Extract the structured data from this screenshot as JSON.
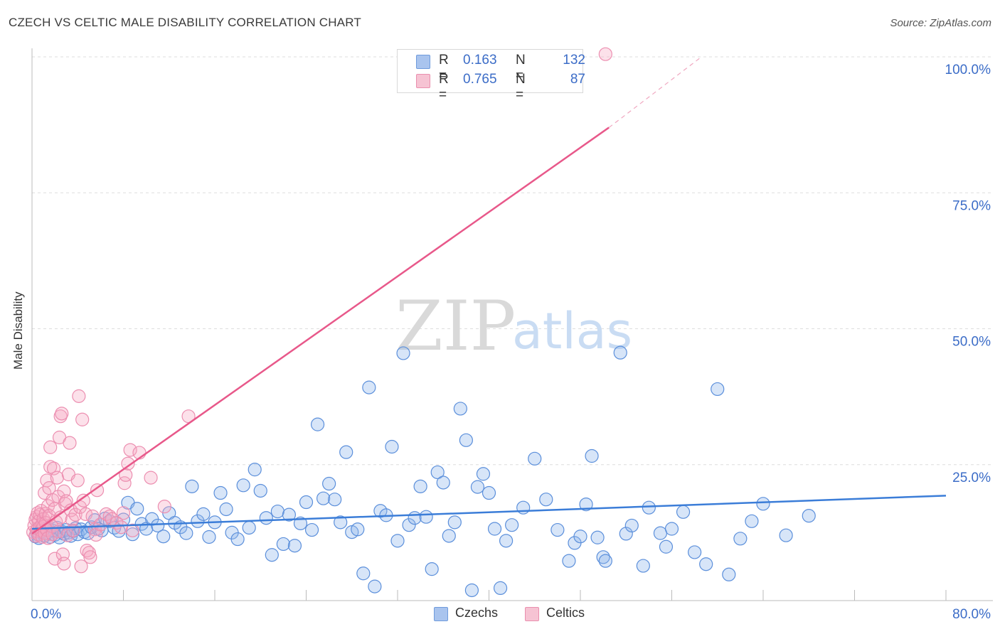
{
  "header": {
    "title": "CZECH VS CELTIC MALE DISABILITY CORRELATION CHART",
    "source": "Source: ZipAtlas.com"
  },
  "watermark": {
    "zip": "ZIP",
    "atlas": "atlas"
  },
  "legend": {
    "rows": [
      {
        "r_label": "R =",
        "r_value": "0.163",
        "n_label": "N =",
        "n_value": "132",
        "color": "#a9c4ee"
      },
      {
        "r_label": "R =",
        "r_value": "0.765",
        "n_label": "N =",
        "n_value": "87",
        "color": "#f6b8cc"
      }
    ]
  },
  "bottom_legend": [
    {
      "label": "Czechs",
      "color": "#a9c4ee"
    },
    {
      "label": "Celtics",
      "color": "#f6b8cc"
    }
  ],
  "chart_data": {
    "type": "scatter",
    "title": "CZECH VS CELTIC MALE DISABILITY CORRELATION CHART",
    "xlabel": "",
    "ylabel": "Male Disability",
    "xlim": [
      0,
      80
    ],
    "ylim": [
      0,
      100
    ],
    "x_tick_labels": [
      "0.0%",
      "80.0%"
    ],
    "y_tick_labels": [
      "25.0%",
      "50.0%",
      "75.0%",
      "100.0%"
    ],
    "y_ticks": [
      25,
      50,
      75,
      100
    ],
    "grid": "horizontal dashed",
    "legend_position": "top-center",
    "colors": {
      "czechs": "#3b7dd8",
      "celtics": "#e8588a",
      "tick_label": "#3b6cc7"
    },
    "series": [
      {
        "name": "Czechs",
        "r": 0.163,
        "n": 132,
        "trend": {
          "x": [
            0,
            80
          ],
          "y": [
            13.2,
            19.3
          ]
        },
        "points": [
          [
            0.3,
            11.8
          ],
          [
            0.5,
            12.2
          ],
          [
            0.6,
            11.5
          ],
          [
            0.8,
            12.6
          ],
          [
            1.0,
            13.1
          ],
          [
            1.1,
            11.9
          ],
          [
            1.3,
            12.4
          ],
          [
            1.4,
            13.2
          ],
          [
            1.6,
            11.7
          ],
          [
            1.8,
            12.9
          ],
          [
            2.0,
            12.1
          ],
          [
            2.2,
            13.4
          ],
          [
            2.4,
            11.6
          ],
          [
            2.6,
            12.7
          ],
          [
            2.8,
            12.3
          ],
          [
            3.0,
            13.0
          ],
          [
            3.2,
            12.5
          ],
          [
            3.4,
            11.9
          ],
          [
            3.6,
            12.8
          ],
          [
            3.8,
            13.3
          ],
          [
            4.0,
            12.2
          ],
          [
            4.3,
            13.1
          ],
          [
            4.6,
            12.6
          ],
          [
            4.9,
            12.4
          ],
          [
            5.2,
            13.5
          ],
          [
            5.5,
            14.8
          ],
          [
            5.8,
            13.2
          ],
          [
            6.1,
            12.9
          ],
          [
            6.4,
            15.1
          ],
          [
            6.8,
            14.6
          ],
          [
            7.2,
            13.4
          ],
          [
            7.6,
            12.8
          ],
          [
            8.0,
            14.9
          ],
          [
            8.4,
            18.0
          ],
          [
            8.8,
            12.2
          ],
          [
            9.2,
            16.9
          ],
          [
            9.6,
            14.1
          ],
          [
            10.0,
            13.2
          ],
          [
            10.5,
            15.0
          ],
          [
            11.0,
            13.8
          ],
          [
            11.5,
            11.8
          ],
          [
            12.0,
            16.1
          ],
          [
            12.5,
            14.3
          ],
          [
            13.0,
            13.5
          ],
          [
            13.5,
            12.4
          ],
          [
            14.0,
            21.0
          ],
          [
            14.5,
            14.6
          ],
          [
            15.0,
            15.9
          ],
          [
            15.5,
            11.7
          ],
          [
            16.0,
            14.4
          ],
          [
            16.5,
            19.8
          ],
          [
            17.0,
            16.8
          ],
          [
            17.5,
            12.5
          ],
          [
            18.0,
            11.3
          ],
          [
            18.5,
            21.2
          ],
          [
            19.0,
            13.4
          ],
          [
            19.5,
            24.1
          ],
          [
            20.0,
            20.2
          ],
          [
            20.5,
            15.2
          ],
          [
            21.0,
            8.4
          ],
          [
            21.5,
            16.4
          ],
          [
            22.0,
            10.4
          ],
          [
            22.5,
            15.8
          ],
          [
            23.0,
            10.1
          ],
          [
            23.5,
            14.2
          ],
          [
            24.0,
            18.1
          ],
          [
            24.5,
            13.0
          ],
          [
            25.0,
            32.4
          ],
          [
            25.5,
            18.8
          ],
          [
            26.0,
            21.5
          ],
          [
            26.5,
            18.6
          ],
          [
            27.0,
            14.4
          ],
          [
            27.5,
            27.3
          ],
          [
            28.0,
            12.6
          ],
          [
            28.5,
            13.1
          ],
          [
            29.0,
            5.0
          ],
          [
            29.5,
            39.2
          ],
          [
            30.0,
            2.6
          ],
          [
            30.5,
            16.5
          ],
          [
            31.0,
            15.7
          ],
          [
            31.5,
            28.3
          ],
          [
            32.0,
            11.0
          ],
          [
            32.5,
            45.5
          ],
          [
            33.0,
            13.9
          ],
          [
            33.5,
            15.2
          ],
          [
            34.0,
            21.0
          ],
          [
            34.5,
            15.4
          ],
          [
            35.0,
            5.8
          ],
          [
            35.5,
            23.6
          ],
          [
            36.0,
            21.7
          ],
          [
            36.5,
            11.9
          ],
          [
            37.0,
            14.4
          ],
          [
            37.5,
            35.3
          ],
          [
            38.0,
            29.5
          ],
          [
            38.5,
            1.9
          ],
          [
            39.0,
            20.9
          ],
          [
            39.5,
            23.3
          ],
          [
            40.0,
            19.8
          ],
          [
            40.5,
            13.2
          ],
          [
            41.0,
            2.3
          ],
          [
            41.5,
            11.0
          ],
          [
            42.0,
            13.9
          ],
          [
            43.0,
            17.1
          ],
          [
            44.0,
            26.1
          ],
          [
            45.0,
            18.6
          ],
          [
            46.0,
            13.0
          ],
          [
            47.0,
            7.3
          ],
          [
            47.5,
            10.6
          ],
          [
            48.0,
            11.8
          ],
          [
            48.5,
            17.7
          ],
          [
            49.0,
            26.6
          ],
          [
            49.5,
            11.6
          ],
          [
            50.0,
            8.0
          ],
          [
            50.2,
            7.3
          ],
          [
            51.5,
            45.6
          ],
          [
            52.0,
            12.3
          ],
          [
            52.5,
            13.8
          ],
          [
            53.5,
            6.4
          ],
          [
            54.0,
            17.1
          ],
          [
            55.0,
            12.4
          ],
          [
            55.5,
            9.9
          ],
          [
            56.0,
            13.2
          ],
          [
            57.0,
            16.3
          ],
          [
            58.0,
            8.9
          ],
          [
            59.0,
            6.7
          ],
          [
            60.0,
            38.9
          ],
          [
            61.0,
            4.8
          ],
          [
            62.0,
            11.4
          ],
          [
            63.0,
            14.6
          ],
          [
            64.0,
            17.8
          ],
          [
            66.0,
            12.0
          ],
          [
            68.0,
            15.6
          ]
        ]
      },
      {
        "name": "Celtics",
        "r": 0.765,
        "n": 87,
        "trend": {
          "x": [
            0,
            50.5
          ],
          "y": [
            12.3,
            87.0
          ]
        },
        "trend_dashed": {
          "x": [
            50.5,
            58.6
          ],
          "y": [
            87.0,
            100.0
          ]
        },
        "points": [
          [
            0.1,
            12.6
          ],
          [
            0.2,
            13.8
          ],
          [
            0.3,
            11.9
          ],
          [
            0.3,
            14.9
          ],
          [
            0.4,
            12.8
          ],
          [
            0.4,
            15.4
          ],
          [
            0.5,
            13.2
          ],
          [
            0.5,
            16.1
          ],
          [
            0.6,
            12.1
          ],
          [
            0.6,
            14.6
          ],
          [
            0.7,
            13.5
          ],
          [
            0.7,
            15.8
          ],
          [
            0.8,
            12.9
          ],
          [
            0.8,
            16.5
          ],
          [
            0.9,
            14.1
          ],
          [
            0.9,
            11.7
          ],
          [
            1.0,
            15.0
          ],
          [
            1.0,
            13.6
          ],
          [
            1.1,
            19.8
          ],
          [
            1.1,
            12.4
          ],
          [
            1.2,
            16.0
          ],
          [
            1.2,
            14.3
          ],
          [
            1.3,
            22.1
          ],
          [
            1.3,
            13.0
          ],
          [
            1.4,
            17.4
          ],
          [
            1.4,
            11.5
          ],
          [
            1.5,
            20.7
          ],
          [
            1.5,
            15.6
          ],
          [
            1.6,
            24.6
          ],
          [
            1.6,
            28.2
          ],
          [
            1.7,
            13.7
          ],
          [
            1.8,
            18.5
          ],
          [
            1.8,
            12.2
          ],
          [
            1.9,
            24.3
          ],
          [
            2.0,
            7.7
          ],
          [
            2.0,
            16.9
          ],
          [
            2.1,
            14.5
          ],
          [
            2.2,
            22.6
          ],
          [
            2.3,
            19.1
          ],
          [
            2.3,
            12.7
          ],
          [
            2.4,
            30.0
          ],
          [
            2.5,
            33.9
          ],
          [
            2.5,
            15.3
          ],
          [
            2.6,
            34.4
          ],
          [
            2.7,
            8.5
          ],
          [
            2.8,
            20.1
          ],
          [
            2.8,
            6.8
          ],
          [
            2.9,
            17.8
          ],
          [
            3.0,
            18.3
          ],
          [
            3.1,
            12.0
          ],
          [
            3.2,
            23.2
          ],
          [
            3.3,
            29.0
          ],
          [
            3.4,
            16.6
          ],
          [
            3.5,
            14.9
          ],
          [
            3.6,
            12.9
          ],
          [
            3.8,
            15.8
          ],
          [
            4.0,
            22.1
          ],
          [
            4.1,
            37.6
          ],
          [
            4.2,
            17.2
          ],
          [
            4.3,
            6.3
          ],
          [
            4.4,
            33.3
          ],
          [
            4.5,
            18.4
          ],
          [
            4.7,
            15.9
          ],
          [
            4.8,
            9.2
          ],
          [
            5.0,
            8.8
          ],
          [
            5.1,
            8.0
          ],
          [
            5.3,
            15.5
          ],
          [
            5.5,
            13.1
          ],
          [
            5.6,
            12.1
          ],
          [
            5.7,
            20.3
          ],
          [
            6.0,
            14.0
          ],
          [
            6.5,
            15.9
          ],
          [
            6.8,
            15.5
          ],
          [
            7.0,
            15.0
          ],
          [
            7.4,
            14.3
          ],
          [
            7.8,
            13.5
          ],
          [
            8.0,
            16.1
          ],
          [
            8.1,
            21.6
          ],
          [
            8.2,
            23.1
          ],
          [
            8.4,
            25.2
          ],
          [
            8.6,
            27.7
          ],
          [
            8.8,
            12.9
          ],
          [
            9.4,
            27.2
          ],
          [
            10.4,
            22.6
          ],
          [
            11.6,
            17.3
          ],
          [
            13.7,
            33.9
          ],
          [
            50.2,
            100.5
          ]
        ]
      }
    ]
  }
}
